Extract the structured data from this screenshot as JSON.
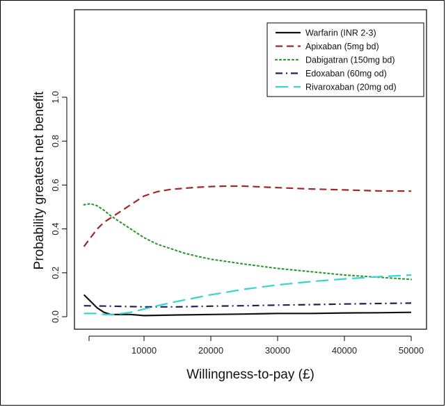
{
  "chart_data": {
    "type": "line",
    "xlabel": "Willingness-to-pay (£)",
    "ylabel": "Probability greatest net benefit",
    "xlim": [
      0,
      50000
    ],
    "ylim": [
      0,
      1.0
    ],
    "x_ticks": [
      {
        "value": 10000,
        "label": "10000"
      },
      {
        "value": 20000,
        "label": "20000"
      },
      {
        "value": 30000,
        "label": "30000"
      },
      {
        "value": 40000,
        "label": "40000"
      },
      {
        "value": 50000,
        "label": "50000"
      }
    ],
    "y_ticks": [
      {
        "value": 0.0,
        "label": "0.0"
      },
      {
        "value": 0.2,
        "label": "0.2"
      },
      {
        "value": 0.4,
        "label": "0.4"
      },
      {
        "value": 0.6,
        "label": "0.6"
      },
      {
        "value": 0.8,
        "label": "0.8"
      },
      {
        "value": 1.0,
        "label": "1.0"
      }
    ],
    "grid": false,
    "legend_position": "top-right",
    "series": [
      {
        "name": "Warfarin (INR 2-3)",
        "color": "#111111",
        "dash": "solid",
        "x": [
          1000,
          2000,
          3000,
          4000,
          5000,
          6000,
          8000,
          10000,
          15000,
          20000,
          25000,
          30000,
          35000,
          40000,
          45000,
          50000
        ],
        "y": [
          0.1,
          0.07,
          0.04,
          0.02,
          0.01,
          0.01,
          0.01,
          0.005,
          0.008,
          0.01,
          0.012,
          0.015,
          0.015,
          0.017,
          0.018,
          0.02
        ]
      },
      {
        "name": "Apixaban (5mg bd)",
        "color": "#a52424",
        "dash": "dashed",
        "x": [
          1000,
          2000,
          3000,
          4000,
          5000,
          6000,
          7000,
          8000,
          9000,
          10000,
          11000,
          12000,
          14000,
          16000,
          18000,
          20000,
          22000,
          25000,
          30000,
          35000,
          40000,
          45000,
          50000
        ],
        "y": [
          0.32,
          0.36,
          0.4,
          0.43,
          0.45,
          0.47,
          0.49,
          0.51,
          0.53,
          0.55,
          0.56,
          0.57,
          0.58,
          0.585,
          0.59,
          0.593,
          0.595,
          0.595,
          0.588,
          0.582,
          0.578,
          0.573,
          0.572
        ]
      },
      {
        "name": "Dabigatran (150mg bd)",
        "color": "#2e9a2e",
        "dash": "dotted",
        "x": [
          1000,
          2000,
          3000,
          4000,
          5000,
          6000,
          7000,
          8000,
          9000,
          10000,
          12000,
          14000,
          16000,
          18000,
          20000,
          25000,
          30000,
          35000,
          40000,
          45000,
          50000
        ],
        "y": [
          0.51,
          0.515,
          0.505,
          0.485,
          0.46,
          0.44,
          0.42,
          0.4,
          0.38,
          0.36,
          0.33,
          0.31,
          0.29,
          0.275,
          0.262,
          0.24,
          0.22,
          0.205,
          0.19,
          0.18,
          0.17
        ]
      },
      {
        "name": "Edoxaban (60mg od)",
        "color": "#1f1f5c",
        "dash": "dashdot",
        "x": [
          1000,
          5000,
          10000,
          15000,
          20000,
          25000,
          30000,
          35000,
          40000,
          45000,
          50000
        ],
        "y": [
          0.05,
          0.048,
          0.045,
          0.045,
          0.048,
          0.05,
          0.053,
          0.055,
          0.058,
          0.06,
          0.062
        ]
      },
      {
        "name": "Rivaroxaban (20mg od)",
        "color": "#35d3d3",
        "dash": "longdash",
        "x": [
          1000,
          3000,
          4000,
          5000,
          6000,
          8000,
          10000,
          12000,
          15000,
          20000,
          25000,
          30000,
          35000,
          40000,
          45000,
          50000
        ],
        "y": [
          0.015,
          0.015,
          0.01,
          0.01,
          0.012,
          0.02,
          0.035,
          0.05,
          0.07,
          0.1,
          0.125,
          0.145,
          0.16,
          0.172,
          0.182,
          0.19
        ]
      }
    ]
  }
}
